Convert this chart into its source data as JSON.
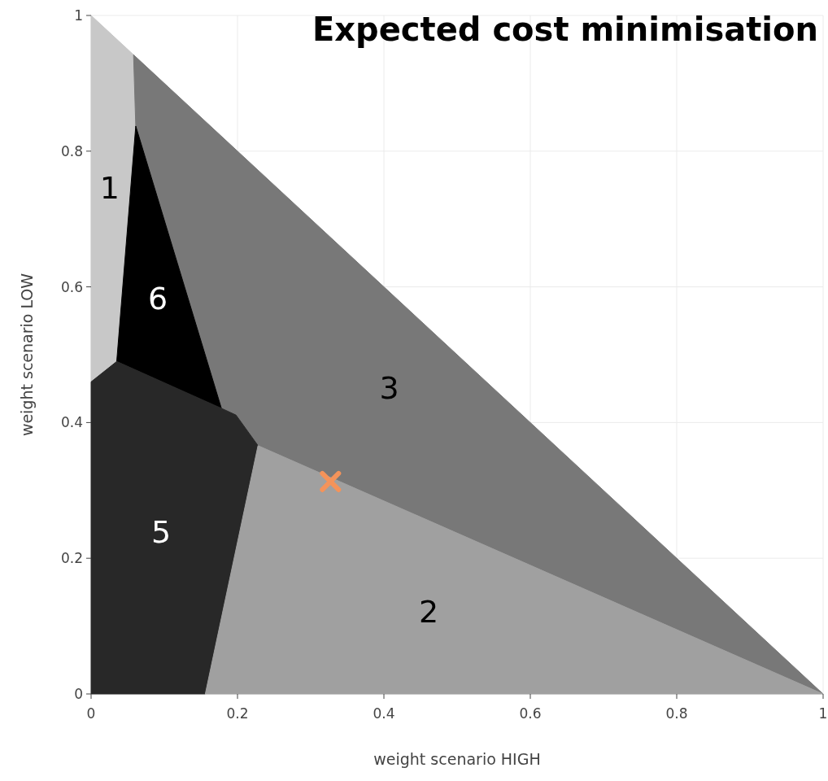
{
  "chart_data": {
    "type": "area",
    "title": "Expected cost minimisation",
    "xlabel": "weight scenario HIGH",
    "ylabel": "weight scenario LOW",
    "xlim": [
      0,
      1
    ],
    "ylim": [
      0,
      1
    ],
    "xticks": [
      0,
      0.2,
      0.4,
      0.6,
      0.8,
      1
    ],
    "yticks": [
      0,
      0.2,
      0.4,
      0.6,
      0.8,
      1
    ],
    "grid": true,
    "series": [
      {
        "name": "1",
        "color": "#c8c8c8",
        "x": [
          0,
          0.058,
          0.061,
          0.035,
          0,
          0
        ],
        "values": [
          1,
          0.942,
          0.837,
          0.49,
          0.46,
          1
        ]
      },
      {
        "name": "3",
        "color": "#787878",
        "x": [
          0.058,
          1,
          0.228,
          0.198,
          0.178,
          0.061,
          0.058
        ],
        "values": [
          0.942,
          0,
          0.366,
          0.411,
          0.421,
          0.837,
          0.942
        ]
      },
      {
        "name": "6",
        "color": "#000000",
        "x": [
          0.061,
          0.035,
          0.178,
          0.061
        ],
        "values": [
          0.837,
          0.49,
          0.421,
          0.837
        ]
      },
      {
        "name": "5",
        "color": "#282828",
        "x": [
          0,
          0.156,
          0.228,
          0.198,
          0.178,
          0.035,
          0,
          0
        ],
        "values": [
          0,
          0,
          0.366,
          0.411,
          0.421,
          0.49,
          0.46,
          0
        ]
      },
      {
        "name": "2",
        "color": "#a0a0a0",
        "x": [
          0.156,
          1,
          0.228,
          0.156
        ],
        "values": [
          0,
          0,
          0.366,
          0
        ]
      },
      {
        "type": "scatter",
        "color": "#f4935a",
        "marker": "cross",
        "x": [
          0.327
        ],
        "values": [
          0.313
        ]
      }
    ]
  }
}
